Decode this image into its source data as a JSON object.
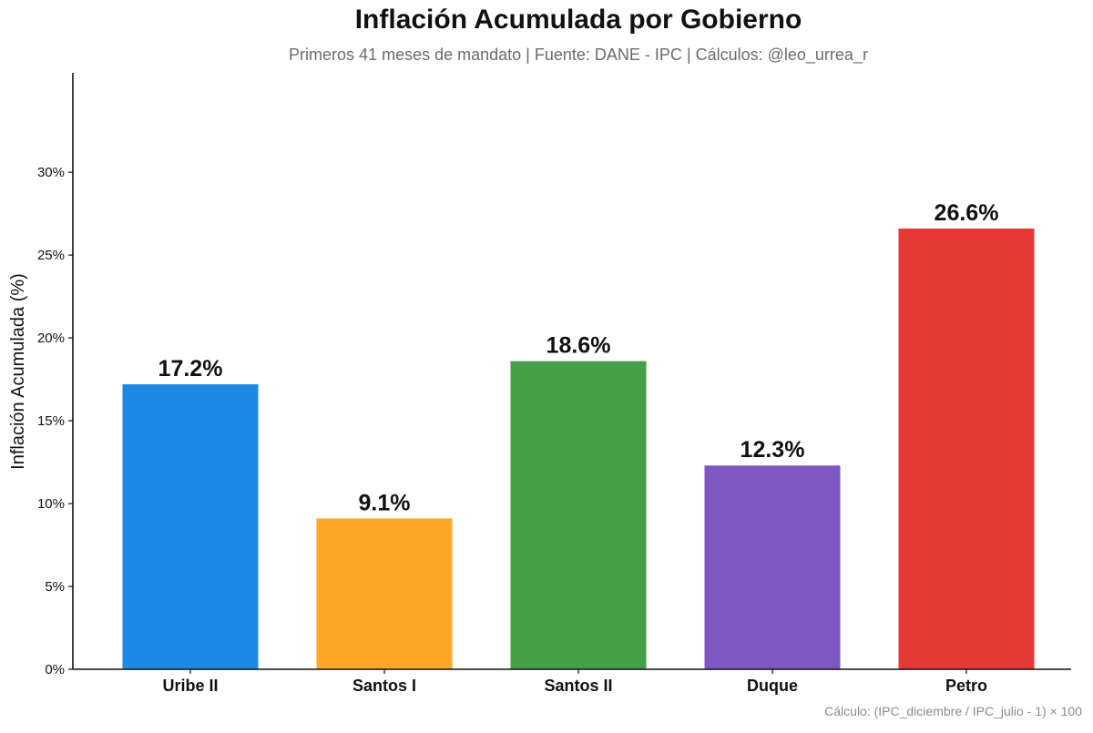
{
  "chart_data": {
    "type": "bar",
    "title": "Inflación Acumulada por Gobierno",
    "subtitle": "Primeros 41 meses de mandato | Fuente: DANE - IPC | Cálculos: @leo_urrea_r",
    "categories": [
      "Uribe II",
      "Santos I",
      "Santos II",
      "Duque",
      "Petro"
    ],
    "values": [
      17.2,
      9.1,
      18.6,
      12.3,
      26.6
    ],
    "data_labels": [
      "17.2%",
      "9.1%",
      "18.6%",
      "12.3%",
      "26.6%"
    ],
    "colors": [
      "#1e88e5",
      "#ffa726",
      "#43a047",
      "#7e57c2",
      "#e53935"
    ],
    "xlabel": "",
    "ylabel": "Inflación Acumulada (%)",
    "ylim": [
      0,
      36
    ],
    "y_ticks": [
      0,
      5,
      10,
      15,
      20,
      25,
      30
    ],
    "y_tick_labels": [
      "0%",
      "5%",
      "10%",
      "15%",
      "20%",
      "25%",
      "30%"
    ],
    "grid": false,
    "legend": "none",
    "footnote": "Cálculo: (IPC_diciembre / IPC_julio - 1) × 100"
  }
}
